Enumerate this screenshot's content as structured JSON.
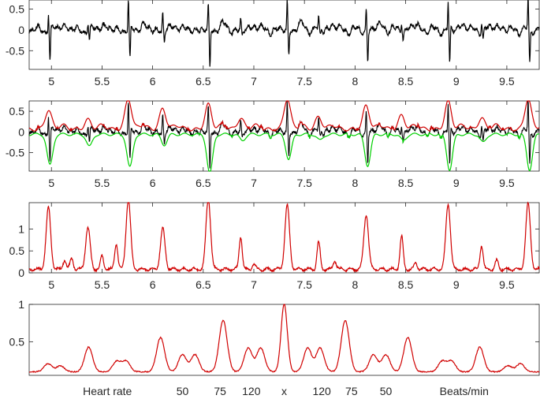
{
  "chart_data": [
    {
      "type": "line",
      "panel": "raw-signal",
      "xlim": [
        4.78,
        9.82
      ],
      "ylim": [
        -0.95,
        0.72
      ],
      "xticks": [
        "5",
        "5.5",
        "6",
        "6.5",
        "7",
        "7.5",
        "8",
        "8.5",
        "9",
        "9.5"
      ],
      "yticks": [
        "0.5",
        "0",
        "-0.5"
      ],
      "grid": false,
      "beats": [
        {
          "x": 4.97,
          "peak": 0.42,
          "trough": -0.75
        },
        {
          "x": 5.36,
          "peak": 0.18,
          "trough": -0.3
        },
        {
          "x": 5.76,
          "peak": 0.7,
          "trough": -0.8
        },
        {
          "x": 6.1,
          "peak": 0.45,
          "trough": -0.25
        },
        {
          "x": 6.55,
          "peak": 0.55,
          "trough": -0.95
        },
        {
          "x": 6.87,
          "peak": 0.22,
          "trough": -0.15
        },
        {
          "x": 7.33,
          "peak": 0.7,
          "trough": -0.6
        },
        {
          "x": 7.64,
          "peak": 0.25,
          "trough": -0.15
        },
        {
          "x": 8.11,
          "peak": 0.52,
          "trough": -0.75
        },
        {
          "x": 8.46,
          "peak": 0.28,
          "trough": -0.15
        },
        {
          "x": 8.92,
          "peak": 0.62,
          "trough": -0.85
        },
        {
          "x": 9.25,
          "peak": 0.22,
          "trough": -0.2
        },
        {
          "x": 9.71,
          "peak": 0.7,
          "trough": -0.85
        }
      ]
    },
    {
      "type": "line",
      "panel": "envelopes",
      "xlim": [
        4.78,
        9.82
      ],
      "ylim": [
        -0.95,
        0.75
      ],
      "xticks": [
        "5",
        "5.5",
        "6",
        "6.5",
        "7",
        "7.5",
        "8",
        "8.5",
        "9",
        "9.5"
      ],
      "yticks": [
        "0.5",
        "0",
        "-0.5"
      ],
      "grid": false,
      "series": [
        {
          "color": "#000000"
        },
        {
          "color": "#d00000"
        },
        {
          "color": "#00d000"
        }
      ]
    },
    {
      "type": "line",
      "panel": "energy",
      "xlim": [
        4.78,
        9.82
      ],
      "ylim": [
        0,
        1.6
      ],
      "xticks": [
        "5",
        "5.5",
        "6",
        "6.5",
        "7",
        "7.5",
        "8",
        "8.5",
        "9",
        "9.5"
      ],
      "yticks": [
        "1",
        "0.5",
        "0"
      ],
      "grid": false,
      "peaks": [
        {
          "x": 4.97,
          "y": 1.4
        },
        {
          "x": 5.13,
          "y": 0.22
        },
        {
          "x": 5.2,
          "y": 0.25
        },
        {
          "x": 5.36,
          "y": 0.95
        },
        {
          "x": 5.5,
          "y": 0.3
        },
        {
          "x": 5.64,
          "y": 0.6
        },
        {
          "x": 5.76,
          "y": 1.6
        },
        {
          "x": 6.1,
          "y": 0.92
        },
        {
          "x": 6.55,
          "y": 1.62
        },
        {
          "x": 6.87,
          "y": 0.75
        },
        {
          "x": 7.0,
          "y": 0.12
        },
        {
          "x": 7.33,
          "y": 1.45
        },
        {
          "x": 7.64,
          "y": 0.62
        },
        {
          "x": 7.8,
          "y": 0.2
        },
        {
          "x": 8.11,
          "y": 1.25
        },
        {
          "x": 8.46,
          "y": 0.75
        },
        {
          "x": 8.6,
          "y": 0.15
        },
        {
          "x": 8.92,
          "y": 1.48
        },
        {
          "x": 9.25,
          "y": 0.55
        },
        {
          "x": 9.4,
          "y": 0.2
        },
        {
          "x": 9.71,
          "y": 1.5
        }
      ]
    },
    {
      "type": "line",
      "panel": "heart-rate-spectrum",
      "ylim": [
        0.05,
        1.0
      ],
      "yticks": [
        "1",
        "0.5"
      ],
      "grid": false,
      "peaks": [
        {
          "pos": 0.06,
          "y": 0.2
        },
        {
          "pos": 0.1,
          "y": 0.17
        },
        {
          "pos": 0.19,
          "y": 0.42
        },
        {
          "pos": 0.28,
          "y": 0.23
        },
        {
          "pos": 0.31,
          "y": 0.23
        },
        {
          "pos": 0.42,
          "y": 0.55
        },
        {
          "pos": 0.49,
          "y": 0.32
        },
        {
          "pos": 0.53,
          "y": 0.32
        },
        {
          "pos": 0.62,
          "y": 0.78
        },
        {
          "pos": 0.7,
          "y": 0.41
        },
        {
          "pos": 0.74,
          "y": 0.41
        },
        {
          "pos": 0.815,
          "y": 1.0
        },
        {
          "pos": 0.89,
          "y": 0.41
        },
        {
          "pos": 0.93,
          "y": 0.41
        },
        {
          "pos": 1.01,
          "y": 0.78
        },
        {
          "pos": 1.1,
          "y": 0.32
        },
        {
          "pos": 1.14,
          "y": 0.32
        },
        {
          "pos": 1.21,
          "y": 0.55
        },
        {
          "pos": 1.32,
          "y": 0.23
        },
        {
          "pos": 1.35,
          "y": 0.23
        },
        {
          "pos": 1.44,
          "y": 0.42
        },
        {
          "pos": 1.53,
          "y": 0.17
        },
        {
          "pos": 1.57,
          "y": 0.2
        }
      ],
      "xlabels": [
        {
          "text": "Heart rate",
          "pos": 0.25
        },
        {
          "text": "50",
          "pos": 0.49
        },
        {
          "text": "75",
          "pos": 0.61
        },
        {
          "text": "120",
          "pos": 0.71
        },
        {
          "text": "x",
          "pos": 0.815
        },
        {
          "text": "120",
          "pos": 0.935
        },
        {
          "text": "75",
          "pos": 1.03
        },
        {
          "text": "50",
          "pos": 1.14
        },
        {
          "text": "Beats/min",
          "pos": 1.39
        }
      ],
      "xlim": [
        0,
        1.63
      ]
    }
  ]
}
